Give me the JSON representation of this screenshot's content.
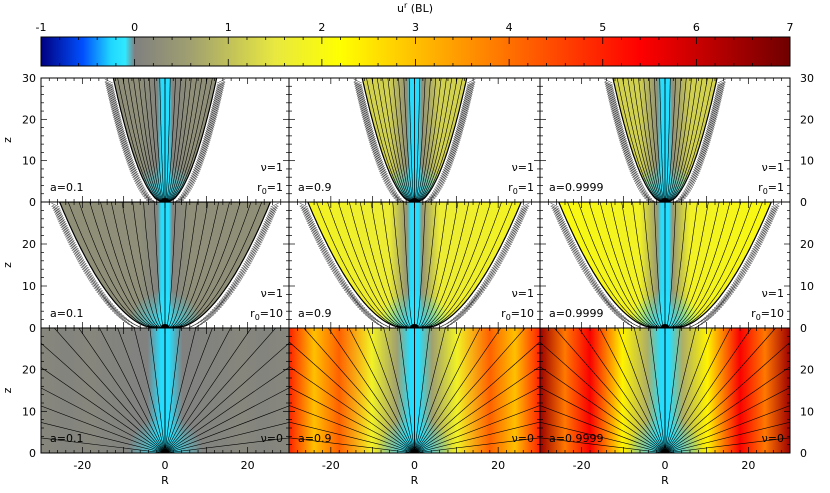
{
  "chart_data": {
    "type": "heatmap",
    "colorbar": {
      "title": "u",
      "title_sup": "r",
      "title_suffix": " (BL)",
      "min": -1,
      "max": 7,
      "ticks": [
        "-1",
        "0",
        "1",
        "2",
        "3",
        "4",
        "5",
        "6",
        "7"
      ],
      "stops": [
        {
          "v": -1.0,
          "c": "#000080"
        },
        {
          "v": -0.55,
          "c": "#0050ff"
        },
        {
          "v": -0.25,
          "c": "#20d8ff"
        },
        {
          "v": -0.1,
          "c": "#30e8ff"
        },
        {
          "v": 0.0,
          "c": "#808080"
        },
        {
          "v": 0.6,
          "c": "#a0a070"
        },
        {
          "v": 1.5,
          "c": "#e8e840"
        },
        {
          "v": 2.2,
          "c": "#ffff00"
        },
        {
          "v": 3.6,
          "c": "#ff9000"
        },
        {
          "v": 4.6,
          "c": "#ff4000"
        },
        {
          "v": 5.4,
          "c": "#ff0000"
        },
        {
          "v": 7.0,
          "c": "#700000"
        }
      ]
    },
    "x_axis": {
      "label": "R",
      "range": [
        -30,
        30
      ],
      "ticks": [
        "-20",
        "0",
        "20"
      ],
      "tick_values": [
        -20,
        0,
        20
      ]
    },
    "y_axis": {
      "label": "z",
      "range": [
        0,
        30
      ],
      "ticks": [
        "0",
        "10",
        "20",
        "30"
      ],
      "tick_values": [
        0,
        10,
        20,
        30
      ]
    },
    "panels": [
      {
        "row": 0,
        "col": 0,
        "spin_label": "a=0.1",
        "nu_label": "ν=1",
        "r0_label": "r",
        "r0_sub": "0",
        "r0_val": "=1",
        "r0": 1,
        "nu": 1,
        "u_jet": 0.3,
        "u_axis": -0.2
      },
      {
        "row": 0,
        "col": 1,
        "spin_label": "a=0.9",
        "nu_label": "ν=1",
        "r0_label": "r",
        "r0_sub": "0",
        "r0_val": "=1",
        "r0": 1,
        "nu": 1,
        "u_jet": 1.4,
        "u_axis": -0.2
      },
      {
        "row": 0,
        "col": 2,
        "spin_label": "a=0.9999",
        "nu_label": "ν=1",
        "r0_label": "r",
        "r0_sub": "0",
        "r0_val": "=1",
        "r0": 1,
        "nu": 1,
        "u_jet": 1.4,
        "u_axis": -0.2
      },
      {
        "row": 1,
        "col": 0,
        "spin_label": "a=0.1",
        "nu_label": "ν=1",
        "r0_label": "r",
        "r0_sub": "0",
        "r0_val": "=10",
        "r0": 10,
        "nu": 1,
        "u_jet": 0.3,
        "u_axis": -0.2
      },
      {
        "row": 1,
        "col": 1,
        "spin_label": "a=0.9",
        "nu_label": "ν=1",
        "r0_label": "r",
        "r0_sub": "0",
        "r0_val": "=10",
        "r0": 10,
        "nu": 1,
        "u_jet": 1.9,
        "u_axis": -0.2
      },
      {
        "row": 1,
        "col": 2,
        "spin_label": "a=0.9999",
        "nu_label": "ν=1",
        "r0_label": "r",
        "r0_sub": "0",
        "r0_val": "=10",
        "r0": 10,
        "nu": 1,
        "u_jet": 2.1,
        "u_axis": -0.2
      },
      {
        "row": 2,
        "col": 0,
        "spin_label": "a=0.1",
        "nu_label": "ν=0",
        "nu": 0,
        "u_jet": 0.1,
        "u_axis": -0.2
      },
      {
        "row": 2,
        "col": 1,
        "spin_label": "a=0.9",
        "nu_label": "ν=0",
        "nu": 0,
        "u_jet": 4.0,
        "u_axis": -0.2
      },
      {
        "row": 2,
        "col": 2,
        "spin_label": "a=0.9999",
        "nu_label": "ν=0",
        "nu": 0,
        "u_jet": 5.2,
        "u_axis": -0.2
      }
    ]
  }
}
